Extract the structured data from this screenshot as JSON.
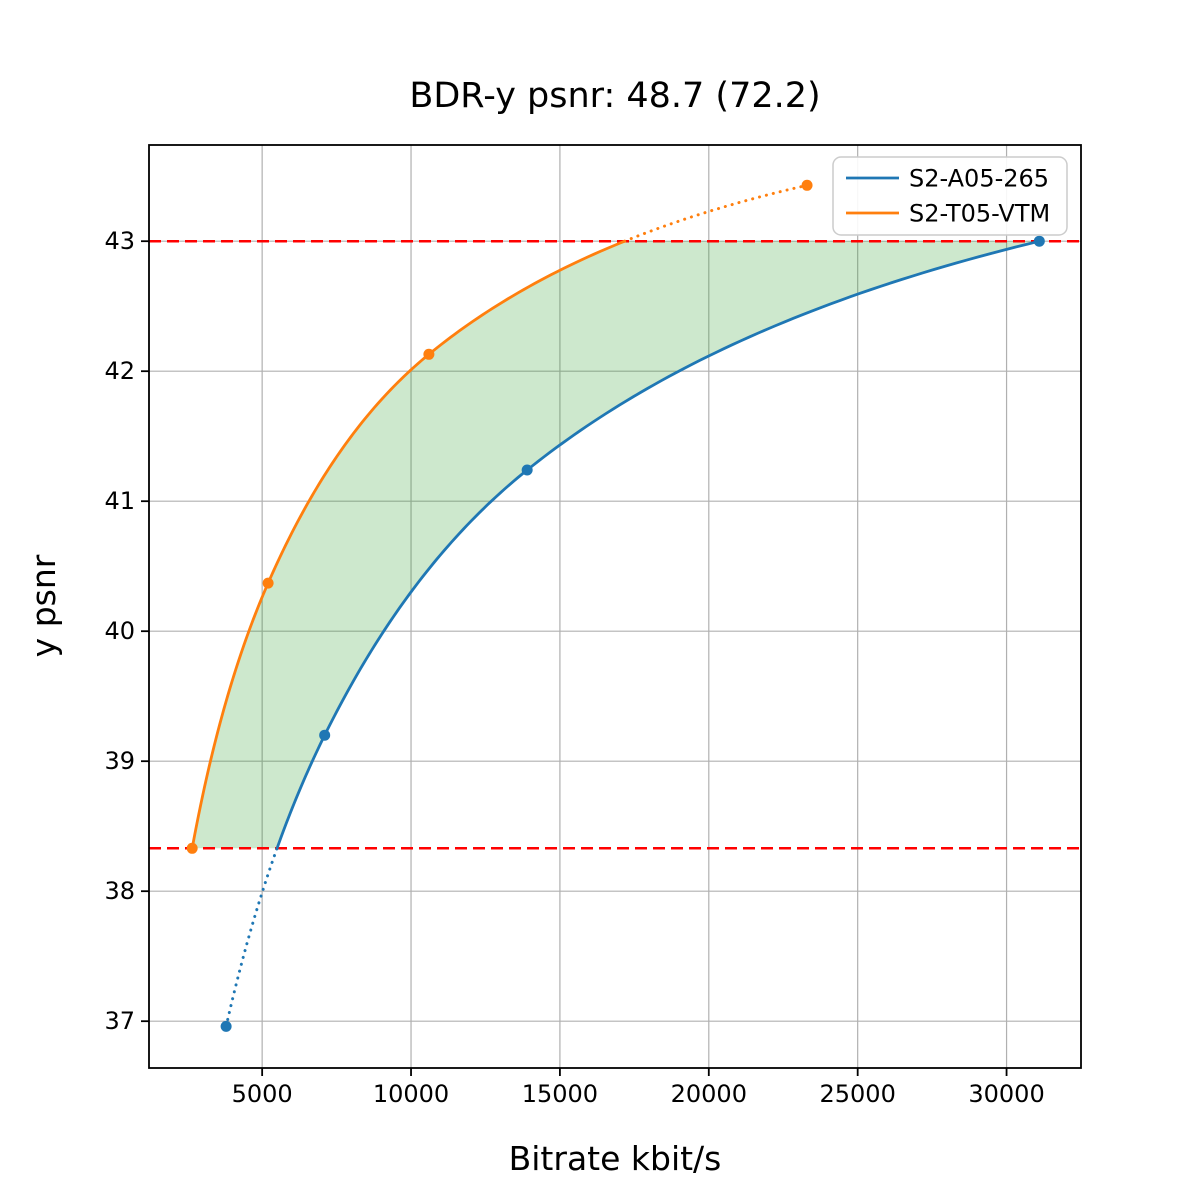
{
  "chart_data": {
    "type": "line",
    "title": "BDR-y psnr: 48.7 (72.2)",
    "xlabel": "Bitrate kbit/s",
    "ylabel": "y psnr",
    "xlim": [
      1200,
      32500
    ],
    "ylim": [
      36.64,
      43.74
    ],
    "xticks": [
      5000,
      10000,
      15000,
      20000,
      25000,
      30000
    ],
    "yticks": [
      37,
      38,
      39,
      40,
      41,
      42,
      43
    ],
    "grid": true,
    "grid_color": "#b0b0b0",
    "legend_position": "upper right",
    "series": [
      {
        "name": "S2-A05-265",
        "color": "#1f77b4",
        "points": [
          [
            3790,
            36.96
          ],
          [
            7100,
            39.2
          ],
          [
            13900,
            41.24
          ],
          [
            31100,
            43.0
          ]
        ]
      },
      {
        "name": "S2-T05-VTM",
        "color": "#ff7f0e",
        "points": [
          [
            2650,
            38.33
          ],
          [
            5200,
            40.37
          ],
          [
            10600,
            42.13
          ],
          [
            23300,
            43.43
          ]
        ]
      }
    ],
    "overlap_range": {
      "low": 38.33,
      "high": 43.0,
      "line_color": "#ff0000",
      "line_style": "dashed"
    },
    "fill_between": {
      "upper_series": 1,
      "lower_series": 0,
      "color": "#2ca02c",
      "opacity": 0.24
    },
    "bdr_value": "48.7",
    "bdr_secondary_value": "72.2"
  }
}
